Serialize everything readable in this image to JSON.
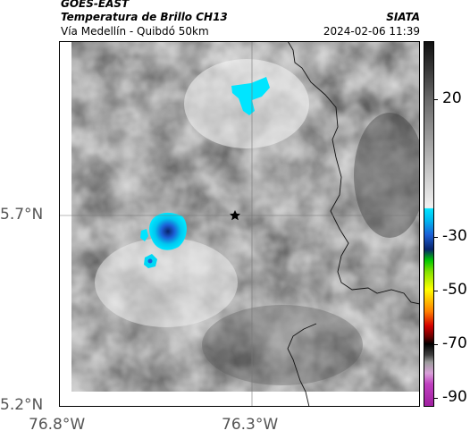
{
  "header": {
    "satellite": "GOES-EAST",
    "product": "Temperatura de Brillo CH13",
    "source": "SIATA",
    "region": "Vía Medellín - Quibdó 50km",
    "datetime": "2024-02-06 11:39"
  },
  "map": {
    "lat_labels": [
      "5.7°N",
      "5.2°N"
    ],
    "lon_labels": [
      "76.8°W",
      "76.3°W"
    ],
    "marker": "star-marker"
  },
  "colorbar": {
    "ticks": [
      "20",
      "-30",
      "-50",
      "-70",
      "-90"
    ],
    "colors": {
      "cyan": "#00e5ff",
      "blue": "#1c5fd6",
      "navy": "#08246b",
      "green": "#00c800",
      "yellow": "#ffff00",
      "orange": "#ff8000",
      "red": "#d40000",
      "black": "#000000",
      "magenta": "#c040c0"
    }
  }
}
